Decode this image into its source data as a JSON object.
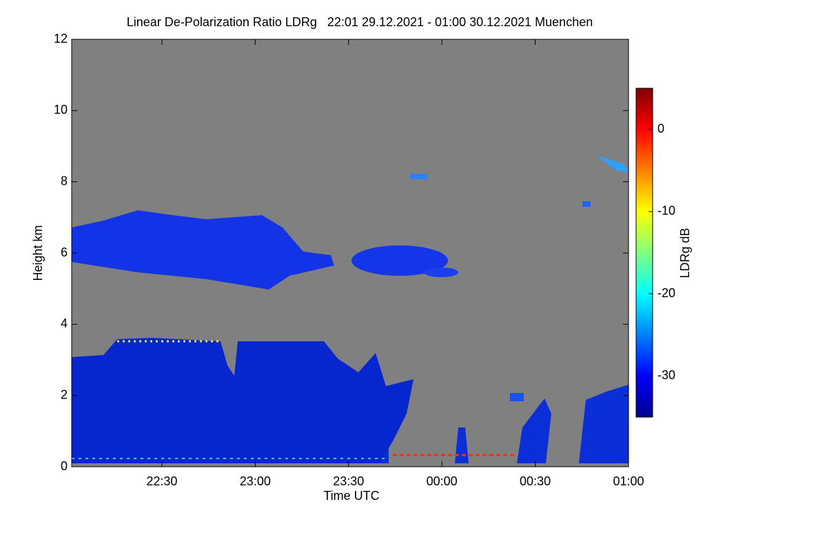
{
  "chart_data": {
    "type": "heatmap",
    "title": "Linear De-Polarization Ratio LDRg   22:01 29.12.2021 - 01:00 30.12.2021 Muenchen",
    "x_label": "Time UTC",
    "y_label": "Height km",
    "colorbar_label": "LDRg dB",
    "xlim": [
      1,
      180
    ],
    "xticks": [
      {
        "value": 30,
        "label": "22:30"
      },
      {
        "value": 60,
        "label": "23:00"
      },
      {
        "value": 90,
        "label": "23:30"
      },
      {
        "value": 120,
        "label": "00:00"
      },
      {
        "value": 150,
        "label": "00:30"
      },
      {
        "value": 180,
        "label": "01:00"
      }
    ],
    "ylim": [
      0,
      12
    ],
    "yticks": [
      0,
      2,
      4,
      6,
      8,
      10,
      12
    ],
    "clim": [
      -35,
      5
    ],
    "cticks": [
      -30,
      -20,
      -10,
      0
    ]
  }
}
